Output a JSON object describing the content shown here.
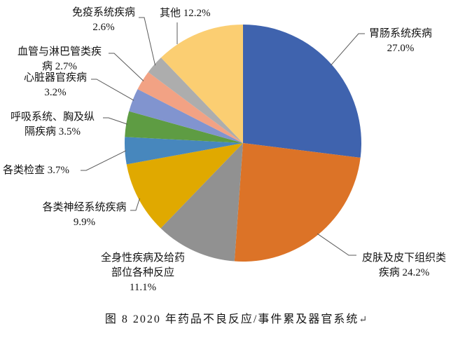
{
  "page": {
    "background": "#ffffff"
  },
  "caption": {
    "figure_label": "图 8",
    "text": "图 8  2020 年药品不良反应/事件累及器官系统",
    "return_mark": "↵"
  },
  "chart_data": {
    "type": "pie",
    "title": "图 8  2020 年药品不良反应/事件累及器官系统",
    "start_angle_deg": 0,
    "direction": "clockwise",
    "unit": "%",
    "legend_position": "none",
    "slices": [
      {
        "key": "gastrointestinal",
        "label": "胃肠系统疾病",
        "value": 27.0,
        "pct_label": "27.0%",
        "color": "#3F63AE",
        "label_lines": [
          "胃肠系统疾病",
          "27.0%"
        ]
      },
      {
        "key": "skin-subcutaneous",
        "label": "皮肤及皮下组织类疾病",
        "value": 24.2,
        "pct_label": "24.2%",
        "color": "#DC7327",
        "label_lines": [
          "皮肤及皮下组织类",
          "疾病 24.2%"
        ]
      },
      {
        "key": "general-disorders",
        "label": "全身性疾病及给药部位各种反应",
        "value": 11.1,
        "pct_label": "11.1%",
        "color": "#919191",
        "label_lines": [
          "全身性疾病及给药",
          "部位各种反应",
          "11.1%"
        ]
      },
      {
        "key": "nervous-system",
        "label": "各类神经系统疾病",
        "value": 9.9,
        "pct_label": "9.9%",
        "color": "#E0A900",
        "label_lines": [
          "各类神经系统疾病",
          "9.9%"
        ]
      },
      {
        "key": "investigations",
        "label": "各类检查",
        "value": 3.7,
        "pct_label": "3.7%",
        "color": "#4787BD",
        "label_lines": [
          "各类检查 3.7%"
        ]
      },
      {
        "key": "respiratory",
        "label": "呼吸系统、胸及纵隔疾病",
        "value": 3.5,
        "pct_label": "3.5%",
        "color": "#5E9C43",
        "label_lines": [
          "呼吸系统、胸及纵",
          "隔疾病 3.5%"
        ]
      },
      {
        "key": "cardiac",
        "label": "心脏器官疾病",
        "value": 3.2,
        "pct_label": "3.2%",
        "color": "#8194CF",
        "label_lines": [
          "心脏器官疾病",
          "3.2%"
        ]
      },
      {
        "key": "vascular-lymphatic",
        "label": "血管与淋巴管类疾病",
        "value": 2.7,
        "pct_label": "2.7%",
        "color": "#F2A284",
        "label_lines": [
          "血管与淋巴管类疾",
          "病 2.7%"
        ]
      },
      {
        "key": "immune-system",
        "label": "免疫系统疾病",
        "value": 2.6,
        "pct_label": "2.6%",
        "color": "#ADADAD",
        "label_lines": [
          "免疫系统疾病",
          "2.6%"
        ]
      },
      {
        "key": "other",
        "label": "其他",
        "value": 12.2,
        "pct_label": "12.2%",
        "color": "#FBCE72",
        "label_lines": [
          "其他 12.2%"
        ]
      }
    ]
  }
}
